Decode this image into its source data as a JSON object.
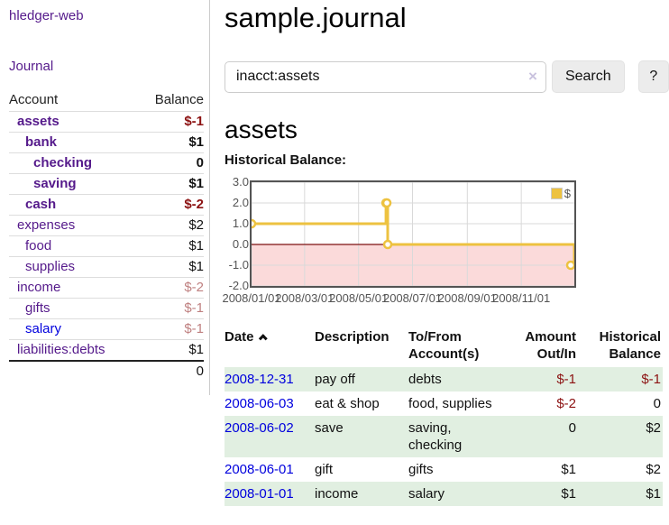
{
  "sidebar": {
    "brand": "hledger-web",
    "journal_link": "Journal",
    "accounts_table": {
      "headers": {
        "account": "Account",
        "balance": "Balance"
      },
      "rows": [
        {
          "name": "assets",
          "indent": 0,
          "bold": true,
          "balance": "$-1",
          "balance_style": "neg-strong",
          "blue": false
        },
        {
          "name": "bank",
          "indent": 1,
          "bold": true,
          "balance": "$1",
          "balance_style": "",
          "blue": false
        },
        {
          "name": "checking",
          "indent": 2,
          "bold": true,
          "balance": "0",
          "balance_style": "",
          "blue": false
        },
        {
          "name": "saving",
          "indent": 2,
          "bold": true,
          "balance": "$1",
          "balance_style": "",
          "blue": false
        },
        {
          "name": "cash",
          "indent": 1,
          "bold": true,
          "balance": "$-2",
          "balance_style": "neg-strong",
          "blue": false
        },
        {
          "name": "expenses",
          "indent": 0,
          "bold": false,
          "balance": "$2",
          "balance_style": "",
          "blue": false
        },
        {
          "name": "food",
          "indent": 1,
          "bold": false,
          "balance": "$1",
          "balance_style": "",
          "blue": false
        },
        {
          "name": "supplies",
          "indent": 1,
          "bold": false,
          "balance": "$1",
          "balance_style": "",
          "blue": false
        },
        {
          "name": "income",
          "indent": 0,
          "bold": false,
          "balance": "$-2",
          "balance_style": "neg-soft",
          "blue": false
        },
        {
          "name": "gifts",
          "indent": 1,
          "bold": false,
          "balance": "$-1",
          "balance_style": "neg-soft",
          "blue": false
        },
        {
          "name": "salary",
          "indent": 1,
          "bold": false,
          "balance": "$-1",
          "balance_style": "neg-soft",
          "blue": true
        },
        {
          "name": "liabilities:debts",
          "indent": 0,
          "bold": false,
          "balance": "$1",
          "balance_style": "",
          "blue": false
        }
      ],
      "total": "0"
    }
  },
  "header": {
    "title": "sample.journal"
  },
  "search": {
    "value": "inacct:assets",
    "clear_icon": "×",
    "search_label": "Search",
    "help_label": "?"
  },
  "account_page": {
    "title": "assets",
    "chart_label": "Historical Balance:"
  },
  "chart_data": {
    "type": "line",
    "title": "Historical Balance",
    "step": true,
    "series": [
      {
        "name": "$",
        "color": "#edc240"
      }
    ],
    "legend": {
      "label": "$",
      "color": "#edc240",
      "position": "top-right"
    },
    "points": [
      {
        "x": "2008-01-01",
        "day": 0,
        "y": 1
      },
      {
        "x": "2008-06-01",
        "day": 152,
        "y": 2
      },
      {
        "x": "2008-06-02",
        "day": 153,
        "y": 2
      },
      {
        "x": "2008-06-03",
        "day": 154,
        "y": 0
      },
      {
        "x": "2008-12-31",
        "day": 365,
        "y": -1
      }
    ],
    "y_ticks": [
      3.0,
      2.0,
      1.0,
      0.0,
      -1.0,
      -2.0
    ],
    "ylim": [
      -2,
      3
    ],
    "xlim_days": [
      0,
      365
    ],
    "x_ticks": [
      {
        "label": "2008/01/01",
        "day": 0
      },
      {
        "label": "2008/03/01",
        "day": 60
      },
      {
        "label": "2008/05/01",
        "day": 121
      },
      {
        "label": "2008/07/01",
        "day": 182
      },
      {
        "label": "2008/09/01",
        "day": 244
      },
      {
        "label": "2008/11/01",
        "day": 305
      }
    ],
    "grid": true,
    "grid_color": "#d9d9d9",
    "border_color": "#545454",
    "negative_region": {
      "from": 0,
      "to": -2,
      "fill": "#fbdada",
      "zero_line_color": "#7d1212"
    },
    "marker": {
      "shape": "circle",
      "fill": "#ffffff",
      "stroke": "#edc240"
    }
  },
  "register": {
    "headers": {
      "date": "Date",
      "sort_icon": "chevron-up",
      "description": "Description",
      "accounts": "To/From Account(s)",
      "amount": "Amount Out/In",
      "balance": "Historical Balance"
    },
    "rows": [
      {
        "date": "2008-12-31",
        "description": "pay off",
        "accounts": "debts",
        "amount": "$-1",
        "amount_negative": true,
        "balance": "$-1",
        "balance_negative": true
      },
      {
        "date": "2008-06-03",
        "description": "eat & shop",
        "accounts": "food, supplies",
        "amount": "$-2",
        "amount_negative": true,
        "balance": "0",
        "balance_negative": false
      },
      {
        "date": "2008-06-02",
        "description": "save",
        "accounts": "saving, checking",
        "amount": "0",
        "amount_negative": false,
        "balance": "$2",
        "balance_negative": false
      },
      {
        "date": "2008-06-01",
        "description": "gift",
        "accounts": "gifts",
        "amount": "$1",
        "amount_negative": false,
        "balance": "$2",
        "balance_negative": false
      },
      {
        "date": "2008-01-01",
        "description": "income",
        "accounts": "salary",
        "amount": "$1",
        "amount_negative": false,
        "balance": "$1",
        "balance_negative": false
      }
    ]
  }
}
